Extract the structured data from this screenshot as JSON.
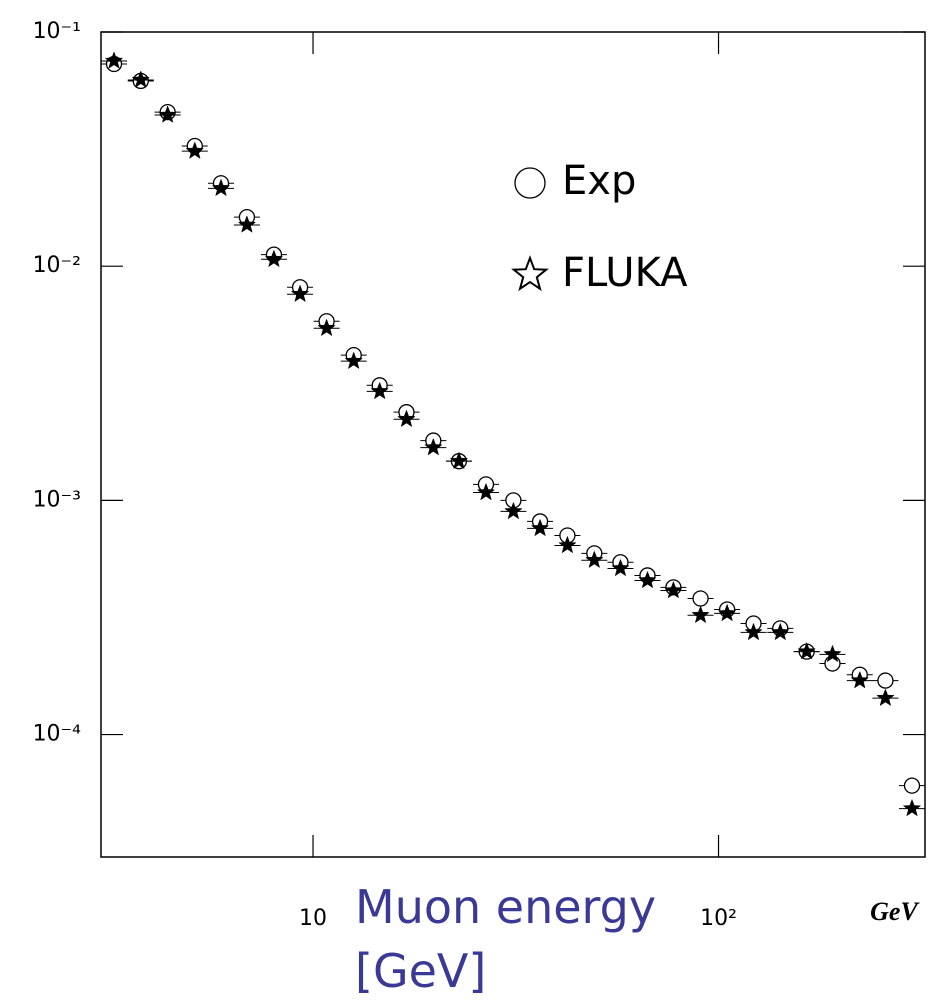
{
  "chart_data": {
    "type": "scatter",
    "xlabel": "GeV",
    "annotation": "Muon energy [GeV]",
    "log_x": true,
    "log_y": true,
    "xlim": [
      3,
      323
    ],
    "ylim": [
      3e-05,
      0.1
    ],
    "xticks": [
      10,
      {
        "value": 100,
        "label": "10²"
      }
    ],
    "yticks": [
      {
        "value": 0.1,
        "label": "10⁻¹"
      },
      {
        "value": 0.01,
        "label": "10⁻²"
      },
      {
        "value": 0.001,
        "label": "10⁻³"
      },
      {
        "value": 0.0001,
        "label": "10⁻⁴"
      }
    ],
    "x": [
      3.23,
      3.76,
      4.38,
      5.11,
      5.93,
      6.87,
      8.01,
      9.29,
      10.8,
      12.6,
      14.6,
      17.0,
      19.8,
      22.9,
      26.7,
      31.2,
      36.3,
      42.4,
      49.4,
      57.3,
      66.8,
      77.4,
      90.3,
      105,
      122,
      142,
      165,
      191,
      223,
      258,
      300
    ],
    "series": [
      {
        "name": "Exp",
        "color": "#000000",
        "marker": "circle",
        "values": [
          0.073,
          0.0618,
          0.0455,
          0.0326,
          0.0226,
          0.0162,
          0.0112,
          0.00813,
          0.00582,
          0.00417,
          0.0031,
          0.00238,
          0.0018,
          0.00147,
          0.00117,
          0.001,
          0.000813,
          0.000708,
          0.000594,
          0.000544,
          0.000478,
          0.000425,
          0.000381,
          0.000342,
          0.000298,
          0.000284,
          0.000226,
          0.000201,
          0.00018,
          0.00017,
          6.05e-05
        ]
      },
      {
        "name": "FLUKA",
        "color": "#000000",
        "marker": "star",
        "values": [
          0.0752,
          0.0624,
          0.0442,
          0.031,
          0.0215,
          0.015,
          0.0107,
          0.00759,
          0.00543,
          0.00393,
          0.00292,
          0.00222,
          0.00168,
          0.00147,
          0.00108,
          0.000897,
          0.000759,
          0.000642,
          0.000555,
          0.000512,
          0.000455,
          0.000412,
          0.000323,
          0.000329,
          0.000273,
          0.000273,
          0.000226,
          0.00022,
          0.00017,
          0.000143,
          4.83e-05
        ]
      }
    ]
  }
}
